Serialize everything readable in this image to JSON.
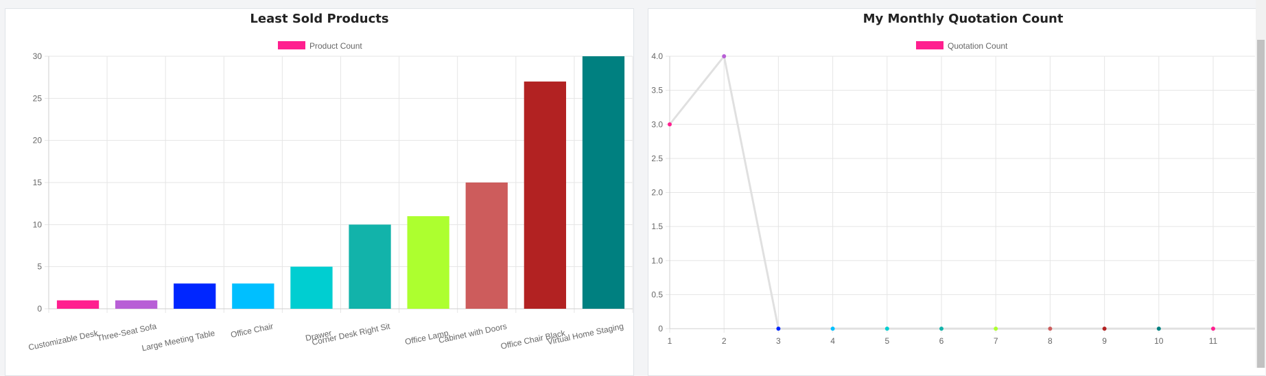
{
  "chart_data": [
    {
      "type": "bar",
      "title": "Least Sold Products",
      "legend": {
        "label": "Product Count",
        "color": "#ff1f8f",
        "position": "top"
      },
      "categories": [
        "Customizable Desk",
        "Three-Seat Sofa",
        "Large Meeting Table",
        "Office Chair",
        "Drawer",
        "Corner Desk Right Sit",
        "Office Lamp",
        "Cabinet with Doors",
        "Office Chair Black",
        "Virtual Home Staging"
      ],
      "values": [
        1,
        1,
        3,
        3,
        5,
        10,
        11,
        15,
        27,
        30
      ],
      "colors": [
        "#ff1f8f",
        "#b85fd6",
        "#0026ff",
        "#00bfff",
        "#00ced1",
        "#12b3aa",
        "#adff2f",
        "#cd5c5c",
        "#b22222",
        "#008080"
      ],
      "ylim": [
        0,
        30
      ],
      "yticks": [
        0,
        5,
        10,
        15,
        20,
        25,
        30
      ],
      "grid": true
    },
    {
      "type": "line",
      "title": "My Monthly Quotation Count",
      "legend": {
        "label": "Quotation Count",
        "color": "#ff1f8f",
        "position": "top"
      },
      "x": [
        1,
        2,
        3,
        4,
        5,
        6,
        7,
        8,
        9,
        10,
        11
      ],
      "values": [
        3,
        4,
        0,
        0,
        0,
        0,
        0,
        0,
        0,
        0,
        0
      ],
      "point_colors": [
        "#ff1f8f",
        "#b85fd6",
        "#0026ff",
        "#00bfff",
        "#00ced1",
        "#12b3aa",
        "#adff2f",
        "#cd5c5c",
        "#b22222",
        "#008080",
        "#ff1f8f"
      ],
      "line_color": "#e0e0e0",
      "ylim": [
        0,
        4
      ],
      "yticks": [
        "0",
        "0.5",
        "1.0",
        "1.5",
        "2.0",
        "2.5",
        "3.0",
        "3.5",
        "4.0"
      ],
      "grid": true
    }
  ]
}
